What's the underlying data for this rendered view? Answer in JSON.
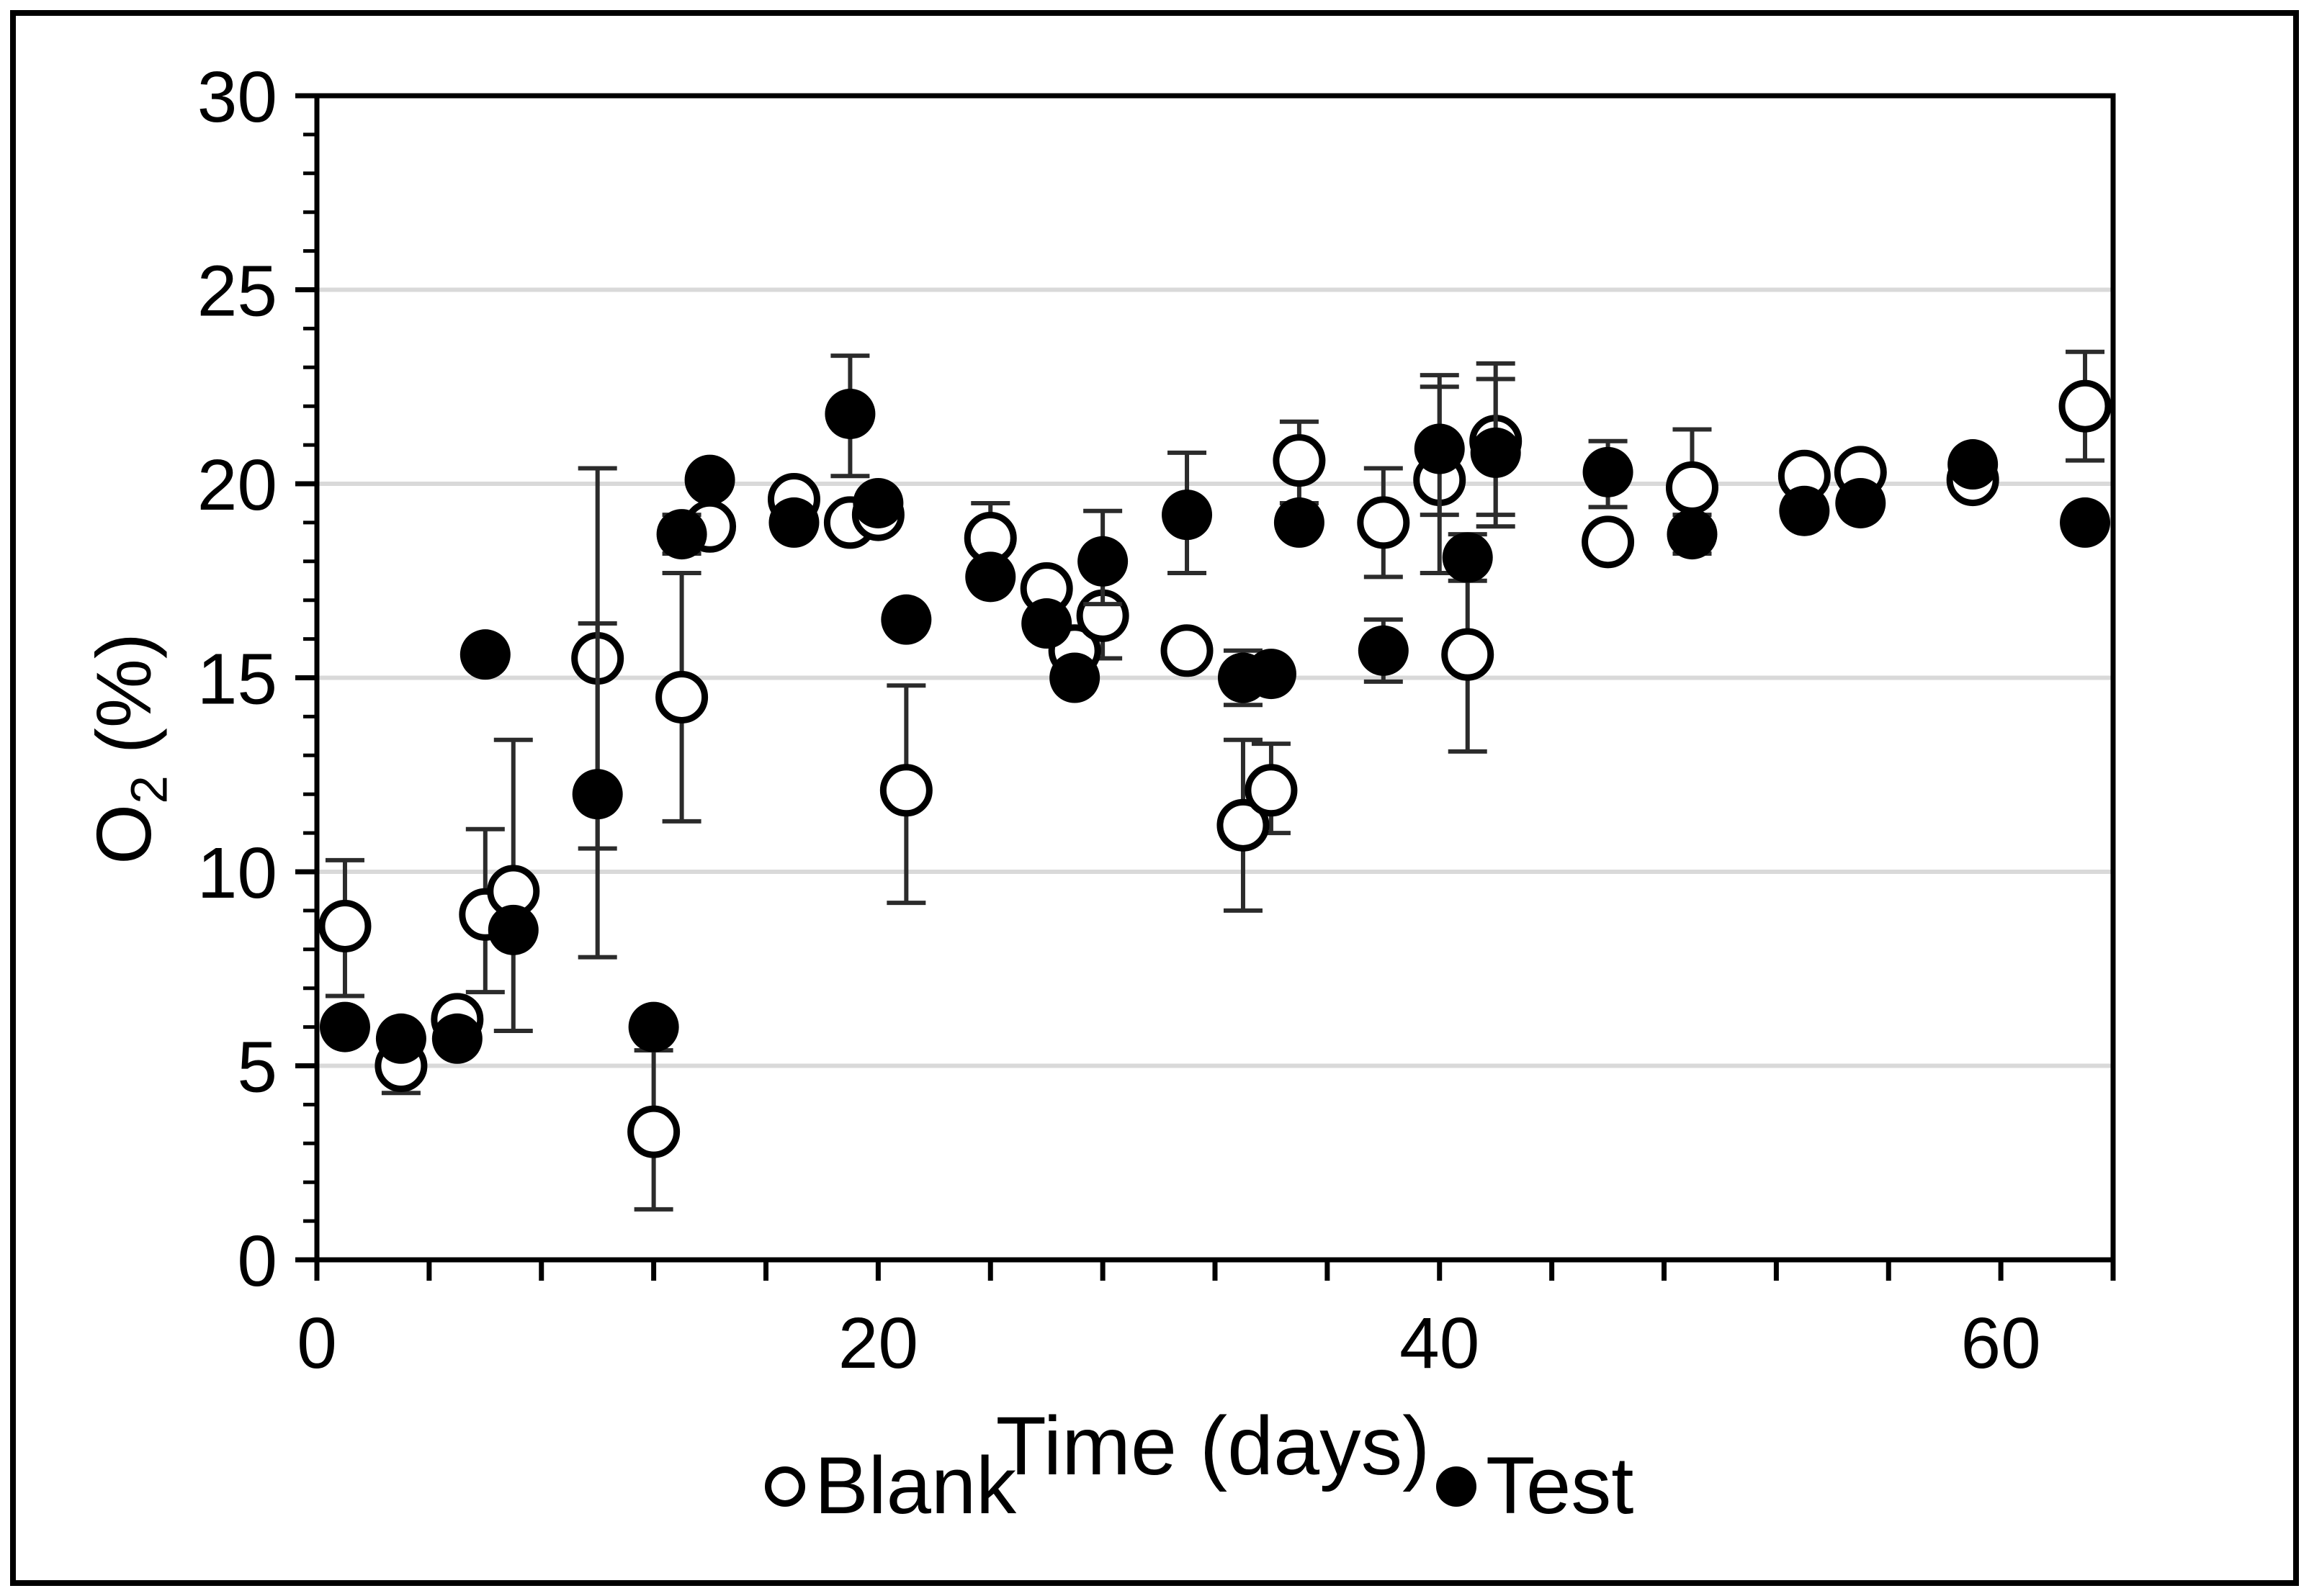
{
  "figure": {
    "xlabel": "Time (days)",
    "ylabel": {
      "base": "O",
      "sub": "2",
      "rest": " (%)"
    },
    "legend": {
      "blank_label": "Blank",
      "test_label": "Test"
    }
  },
  "chart_data": {
    "type": "scatter",
    "title": "",
    "xlabel": "Time (days)",
    "ylabel": "O2 (%)",
    "xlim": [
      0,
      64
    ],
    "ylim": [
      0,
      30
    ],
    "x_tick_step": 4,
    "x_major_tick_labels": [
      "0",
      "20",
      "40",
      "60"
    ],
    "x_major_tick_values": [
      0,
      20,
      40,
      60
    ],
    "y_major_tick_labels": [
      "0",
      "5",
      "10",
      "15",
      "20",
      "25",
      "30"
    ],
    "y_major_tick_values": [
      0,
      5,
      10,
      15,
      20,
      25,
      30
    ],
    "y_minor_tick_step": 1,
    "gridlines_y": [
      5,
      10,
      15,
      20,
      25
    ],
    "grid_on": true,
    "legend_position": "bottom",
    "colors": {
      "background": "#ffffff",
      "axis": "#000000",
      "grid": "#d9d9d9",
      "marker": "#000000",
      "error_bar": "#2b2b2b"
    },
    "series": [
      {
        "name": "Blank",
        "marker": "open-circle",
        "points": [
          {
            "x": 1,
            "y": 8.6,
            "err": [
              6.8,
              10.3
            ]
          },
          {
            "x": 3,
            "y": 5.0,
            "err": [
              4.3,
              5.7
            ]
          },
          {
            "x": 5,
            "y": 6.2,
            "err": null
          },
          {
            "x": 6,
            "y": 8.9,
            "err": [
              6.9,
              11.1
            ]
          },
          {
            "x": 7,
            "y": 9.5,
            "err": [
              5.9,
              13.4
            ]
          },
          {
            "x": 10,
            "y": 15.5,
            "err": [
              10.6,
              20.4
            ]
          },
          {
            "x": 12,
            "y": 3.3,
            "err": [
              1.3,
              5.4
            ]
          },
          {
            "x": 13,
            "y": 14.5,
            "err": [
              11.3,
              17.7
            ]
          },
          {
            "x": 14,
            "y": 18.9,
            "err": null
          },
          {
            "x": 17,
            "y": 19.6,
            "err": null
          },
          {
            "x": 19,
            "y": 19.0,
            "err": null
          },
          {
            "x": 20,
            "y": 19.2,
            "err": null
          },
          {
            "x": 21,
            "y": 12.1,
            "err": [
              9.2,
              14.8
            ]
          },
          {
            "x": 24,
            "y": 18.6,
            "err": [
              17.6,
              19.5
            ]
          },
          {
            "x": 26,
            "y": 17.3,
            "err": null
          },
          {
            "x": 27,
            "y": 15.7,
            "err": null
          },
          {
            "x": 28,
            "y": 16.6,
            "err": [
              15.5,
              17.8
            ]
          },
          {
            "x": 31,
            "y": 15.7,
            "err": null
          },
          {
            "x": 33,
            "y": 11.2,
            "err": [
              9.0,
              13.4
            ]
          },
          {
            "x": 34,
            "y": 12.1,
            "err": [
              11.0,
              13.3
            ]
          },
          {
            "x": 35,
            "y": 20.6,
            "err": [
              19.5,
              21.6
            ]
          },
          {
            "x": 38,
            "y": 19.0,
            "err": [
              17.6,
              20.4
            ]
          },
          {
            "x": 40,
            "y": 20.1,
            "err": [
              17.7,
              22.5
            ]
          },
          {
            "x": 41,
            "y": 15.6,
            "err": [
              13.1,
              18.1
            ]
          },
          {
            "x": 42,
            "y": 21.1,
            "err": [
              19.2,
              23.1
            ]
          },
          {
            "x": 46,
            "y": 18.5,
            "err": null
          },
          {
            "x": 49,
            "y": 19.9,
            "err": [
              18.5,
              21.4
            ]
          },
          {
            "x": 53,
            "y": 20.2,
            "err": null
          },
          {
            "x": 55,
            "y": 20.3,
            "err": null
          },
          {
            "x": 59,
            "y": 20.1,
            "err": null
          },
          {
            "x": 63,
            "y": 22.0,
            "err": [
              20.6,
              23.4
            ]
          }
        ]
      },
      {
        "name": "Test",
        "marker": "filled-circle",
        "points": [
          {
            "x": 1,
            "y": 6.0,
            "err": null
          },
          {
            "x": 3,
            "y": 5.7,
            "err": null
          },
          {
            "x": 5,
            "y": 5.7,
            "err": null
          },
          {
            "x": 6,
            "y": 15.6,
            "err": null
          },
          {
            "x": 7,
            "y": 8.5,
            "err": null
          },
          {
            "x": 10,
            "y": 12.0,
            "err": [
              7.8,
              16.4
            ]
          },
          {
            "x": 12,
            "y": 6.0,
            "err": null
          },
          {
            "x": 13,
            "y": 18.7,
            "err": [
              18.2,
              19.2
            ]
          },
          {
            "x": 14,
            "y": 20.1,
            "err": null
          },
          {
            "x": 17,
            "y": 19.0,
            "err": null
          },
          {
            "x": 19,
            "y": 21.8,
            "err": [
              20.2,
              23.3
            ]
          },
          {
            "x": 20,
            "y": 19.5,
            "err": null
          },
          {
            "x": 21,
            "y": 16.5,
            "err": null
          },
          {
            "x": 24,
            "y": 17.6,
            "err": null
          },
          {
            "x": 26,
            "y": 16.4,
            "err": null
          },
          {
            "x": 27,
            "y": 15.0,
            "err": null
          },
          {
            "x": 28,
            "y": 18.0,
            "err": [
              16.9,
              19.3
            ]
          },
          {
            "x": 31,
            "y": 19.2,
            "err": [
              17.7,
              20.8
            ]
          },
          {
            "x": 33,
            "y": 15.0,
            "err": [
              14.3,
              15.7
            ]
          },
          {
            "x": 34,
            "y": 15.1,
            "err": null
          },
          {
            "x": 35,
            "y": 19.0,
            "err": null
          },
          {
            "x": 38,
            "y": 15.7,
            "err": [
              14.9,
              16.5
            ]
          },
          {
            "x": 40,
            "y": 20.9,
            "err": [
              19.2,
              22.8
            ]
          },
          {
            "x": 41,
            "y": 18.1,
            "err": [
              17.5,
              18.7
            ]
          },
          {
            "x": 42,
            "y": 20.8,
            "err": [
              18.9,
              22.7
            ]
          },
          {
            "x": 46,
            "y": 20.3,
            "err": [
              19.4,
              21.1
            ]
          },
          {
            "x": 49,
            "y": 18.7,
            "err": [
              18.2,
              19.2
            ]
          },
          {
            "x": 53,
            "y": 19.3,
            "err": null
          },
          {
            "x": 55,
            "y": 19.5,
            "err": null
          },
          {
            "x": 59,
            "y": 20.5,
            "err": null
          },
          {
            "x": 63,
            "y": 19.0,
            "err": null
          }
        ]
      }
    ]
  }
}
